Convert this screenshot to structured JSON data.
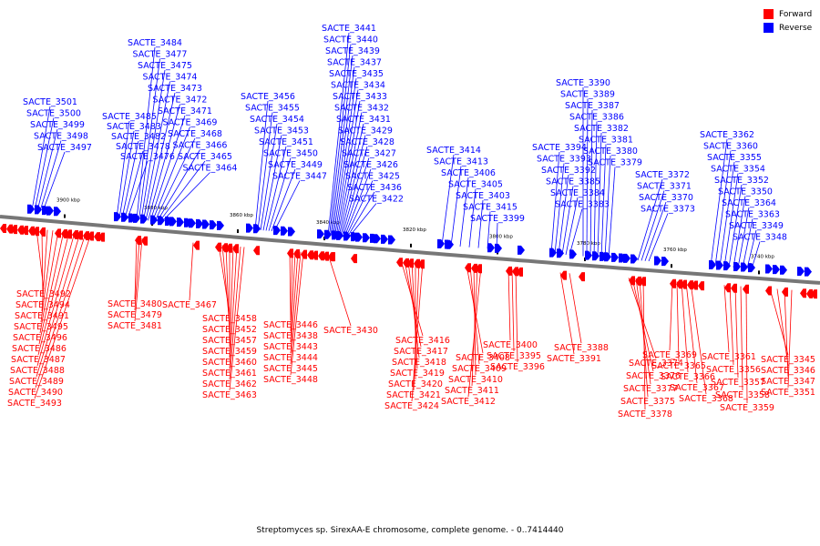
{
  "legend": {
    "forward_label": "Forward",
    "reverse_label": "Reverse",
    "forward_color": "#ff0000",
    "reverse_color": "#0000ff"
  },
  "caption": "Streptomyces sp. SirexAA-E chromosome, complete genome. - 0..7414440",
  "axis_ticks": [
    "3900 kbp",
    "3880 kbp",
    "3860 kbp",
    "3840 kbp",
    "3820 kbp",
    "3800 kbp",
    "3780 kbp",
    "3760 kbp",
    "3740 kbp"
  ],
  "reverse_labels": [
    "SACTE_3501",
    "SACTE_3500",
    "SACTE_3499",
    "SACTE_3498",
    "SACTE_3497",
    "SACTE_3484",
    "SACTE_3477",
    "SACTE_3475",
    "SACTE_3474",
    "SACTE_3473",
    "SACTE_3472",
    "SACTE_3471",
    "SACTE_3469",
    "SACTE_3468",
    "SACTE_3466",
    "SACTE_3465",
    "SACTE_3464",
    "SACTE_3485",
    "SACTE_3483",
    "SACTE_3482",
    "SACTE_3478",
    "SACTE_3476",
    "SACTE_3456",
    "SACTE_3455",
    "SACTE_3454",
    "SACTE_3453",
    "SACTE_3451",
    "SACTE_3450",
    "SACTE_3449",
    "SACTE_3447",
    "SACTE_3441",
    "SACTE_3440",
    "SACTE_3439",
    "SACTE_3437",
    "SACTE_3435",
    "SACTE_3434",
    "SACTE_3433",
    "SACTE_3432",
    "SACTE_3431",
    "SACTE_3429",
    "SACTE_3428",
    "SACTE_3427",
    "SACTE_3426",
    "SACTE_3425",
    "SACTE_3436",
    "SACTE_3422",
    "SACTE_3414",
    "SACTE_3413",
    "SACTE_3406",
    "SACTE_3405",
    "SACTE_3403",
    "SACTE_3415",
    "SACTE_3399",
    "SACTE_3390",
    "SACTE_3389",
    "SACTE_3387",
    "SACTE_3386",
    "SACTE_3382",
    "SACTE_3381",
    "SACTE_3380",
    "SACTE_3379",
    "SACTE_3394",
    "SACTE_3393",
    "SACTE_3392",
    "SACTE_3385",
    "SACTE_3384",
    "SACTE_3383",
    "SACTE_3372",
    "SACTE_3371",
    "SACTE_3370",
    "SACTE_3373",
    "SACTE_3362",
    "SACTE_3360",
    "SACTE_3355",
    "SACTE_3354",
    "SACTE_3352",
    "SACTE_3350",
    "SACTE_3364",
    "SACTE_3363",
    "SACTE_3349",
    "SACTE_3348"
  ],
  "forward_labels": [
    "SACTE_3492",
    "SACTE_3494",
    "SACTE_3491",
    "SACTE_3495",
    "SACTE_3496",
    "SACTE_3486",
    "SACTE_3487",
    "SACTE_3488",
    "SACTE_3489",
    "SACTE_3490",
    "SACTE_3493",
    "SACTE_3480",
    "SACTE_3479",
    "SACTE_3481",
    "SACTE_3467",
    "SACTE_3458",
    "SACTE_3452",
    "SACTE_3457",
    "SACTE_3459",
    "SACTE_3460",
    "SACTE_3461",
    "SACTE_3462",
    "SACTE_3463",
    "SACTE_3446",
    "SACTE_3438",
    "SACTE_3443",
    "SACTE_3444",
    "SACTE_3445",
    "SACTE_3448",
    "SACTE_3430",
    "SACTE_3416",
    "SACTE_3417",
    "SACTE_3418",
    "SACTE_3419",
    "SACTE_3420",
    "SACTE_3421",
    "SACTE_3424",
    "SACTE_3408",
    "SACTE_3409",
    "SACTE_3410",
    "SACTE_3411",
    "SACTE_3412",
    "SACTE_3400",
    "SACTE_3395",
    "SACTE_3396",
    "SACTE_3391",
    "SACTE_3388",
    "SACTE_3374",
    "SACTE_3376",
    "SACTE_3377",
    "SACTE_3375",
    "SACTE_3378",
    "SACTE_3369",
    "SACTE_3365",
    "SACTE_3366",
    "SACTE_3367",
    "SACTE_3368",
    "SACTE_3361",
    "SACTE_3356",
    "SACTE_3357",
    "SACTE_3358",
    "SACTE_3359",
    "SACTE_3345",
    "SACTE_3346",
    "SACTE_3347",
    "SACTE_3351"
  ]
}
